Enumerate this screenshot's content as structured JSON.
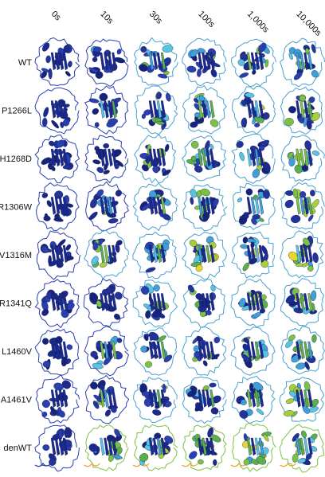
{
  "columns": [
    "0s",
    "10s",
    "30s",
    "100s",
    "1,000s",
    "10,000s"
  ],
  "rows": [
    "WT",
    "P1266L",
    "H1268D",
    "R1306W",
    "V1316M",
    "R1341Q",
    "L1460V",
    "A1461V",
    "denWT"
  ]
}
